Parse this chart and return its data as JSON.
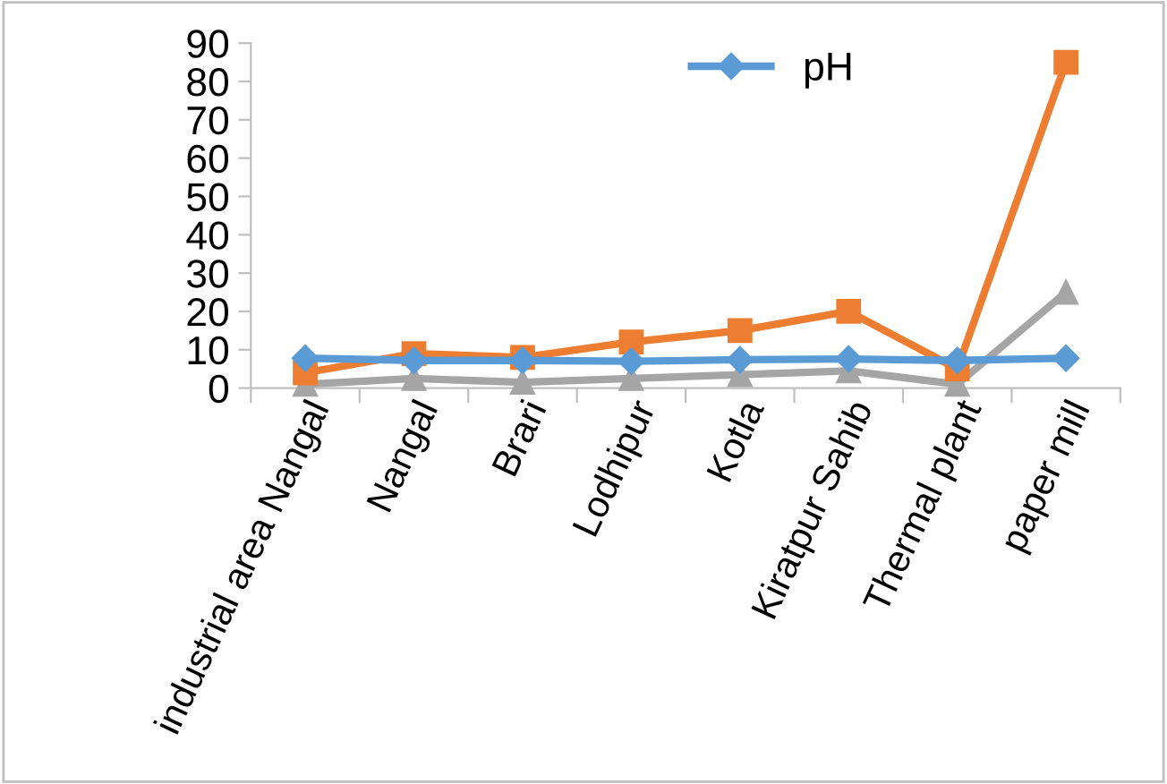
{
  "chart_data": {
    "type": "line",
    "categories": [
      "industrial area Nangal",
      "Nangal",
      "Brari",
      "Lodhipur",
      "Kotla",
      "Kiratpur Sahib",
      "Thermal plant",
      "paper mill"
    ],
    "series": [
      {
        "name": "pH",
        "color": "#5b9bd5",
        "marker": "diamond",
        "values": [
          7.8,
          7.2,
          7.2,
          7.0,
          7.4,
          7.6,
          7.2,
          7.8
        ]
      },
      {
        "color": "#ed7d31",
        "marker": "square",
        "values": [
          4,
          9,
          8,
          12,
          15,
          20,
          5,
          85
        ]
      },
      {
        "color": "#a5a5a5",
        "marker": "triangle",
        "values": [
          1,
          2.5,
          1.5,
          2.5,
          3.5,
          4.5,
          1,
          25
        ]
      }
    ],
    "ylim": [
      0,
      90
    ],
    "yticks": [
      0,
      10,
      20,
      30,
      40,
      50,
      60,
      70,
      80,
      90
    ],
    "grid": false,
    "legend": "top",
    "line_style": "solid"
  }
}
